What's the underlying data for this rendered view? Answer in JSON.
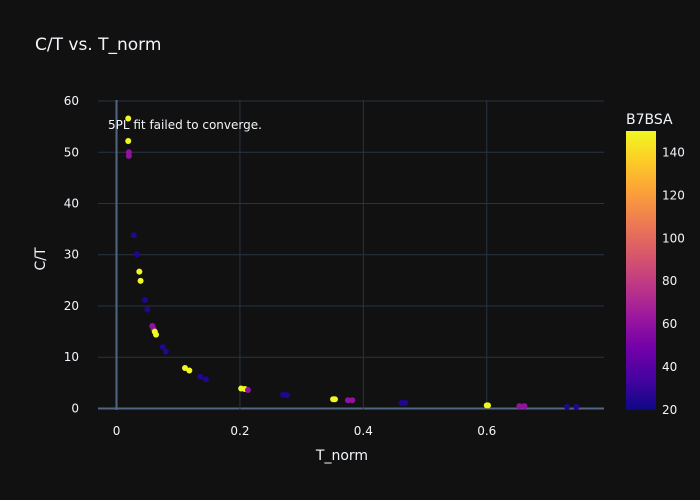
{
  "chart_data": {
    "type": "scatter",
    "title": "C/T vs. T_norm",
    "xlabel": "T_norm",
    "ylabel": "C/T",
    "xlim": [
      -0.03,
      0.79
    ],
    "ylim": [
      -0.3,
      60.2
    ],
    "xticks": [
      0,
      0.2,
      0.4,
      0.6
    ],
    "xtick_labels": [
      "0",
      "0.2",
      "0.4",
      "0.6"
    ],
    "yticks": [
      0,
      10,
      20,
      30,
      40,
      50,
      60
    ],
    "ytick_labels": [
      "0",
      "10",
      "20",
      "30",
      "40",
      "50",
      "60"
    ],
    "grid": true,
    "annotation": "5PL fit failed to converge.",
    "colorbar": {
      "title": "B7BSA",
      "min": 20,
      "max": 150,
      "ticks": [
        20,
        40,
        60,
        80,
        100,
        120,
        140
      ],
      "tick_labels": [
        "20",
        "40",
        "60",
        "80",
        "100",
        "120",
        "140"
      ],
      "colorscale": [
        "#0d0887",
        "#46039f",
        "#7201a8",
        "#9c179e",
        "#bd3786",
        "#d8576b",
        "#ed7953",
        "#fb9f3a",
        "#fdca26",
        "#f0f921"
      ]
    },
    "points": [
      {
        "x": 0.019,
        "y": 56.6,
        "c": 150
      },
      {
        "x": 0.019,
        "y": 52.2,
        "c": 150
      },
      {
        "x": 0.02,
        "y": 50.0,
        "c": 60
      },
      {
        "x": 0.02,
        "y": 49.3,
        "c": 60
      },
      {
        "x": 0.028,
        "y": 33.8,
        "c": 25
      },
      {
        "x": 0.033,
        "y": 30.1,
        "c": 25
      },
      {
        "x": 0.037,
        "y": 26.7,
        "c": 150
      },
      {
        "x": 0.039,
        "y": 24.9,
        "c": 150
      },
      {
        "x": 0.046,
        "y": 21.2,
        "c": 25
      },
      {
        "x": 0.05,
        "y": 19.3,
        "c": 25
      },
      {
        "x": 0.058,
        "y": 16.1,
        "c": 60
      },
      {
        "x": 0.06,
        "y": 15.5,
        "c": 60
      },
      {
        "x": 0.062,
        "y": 15.0,
        "c": 150
      },
      {
        "x": 0.064,
        "y": 14.4,
        "c": 150
      },
      {
        "x": 0.075,
        "y": 12.0,
        "c": 25
      },
      {
        "x": 0.08,
        "y": 11.1,
        "c": 25
      },
      {
        "x": 0.111,
        "y": 7.9,
        "c": 150
      },
      {
        "x": 0.118,
        "y": 7.4,
        "c": 150
      },
      {
        "x": 0.136,
        "y": 6.2,
        "c": 25
      },
      {
        "x": 0.145,
        "y": 5.7,
        "c": 25
      },
      {
        "x": 0.202,
        "y": 3.9,
        "c": 150
      },
      {
        "x": 0.208,
        "y": 3.8,
        "c": 150
      },
      {
        "x": 0.213,
        "y": 3.6,
        "c": 60
      },
      {
        "x": 0.27,
        "y": 2.7,
        "c": 25
      },
      {
        "x": 0.276,
        "y": 2.6,
        "c": 25
      },
      {
        "x": 0.351,
        "y": 1.8,
        "c": 150
      },
      {
        "x": 0.354,
        "y": 1.8,
        "c": 150
      },
      {
        "x": 0.375,
        "y": 1.6,
        "c": 60
      },
      {
        "x": 0.382,
        "y": 1.6,
        "c": 60
      },
      {
        "x": 0.462,
        "y": 1.1,
        "c": 25
      },
      {
        "x": 0.468,
        "y": 1.1,
        "c": 25
      },
      {
        "x": 0.6,
        "y": 0.6,
        "c": 150
      },
      {
        "x": 0.602,
        "y": 0.6,
        "c": 150
      },
      {
        "x": 0.653,
        "y": 0.45,
        "c": 60
      },
      {
        "x": 0.661,
        "y": 0.45,
        "c": 60
      },
      {
        "x": 0.73,
        "y": 0.3,
        "c": 25
      },
      {
        "x": 0.745,
        "y": 0.3,
        "c": 25
      }
    ]
  }
}
